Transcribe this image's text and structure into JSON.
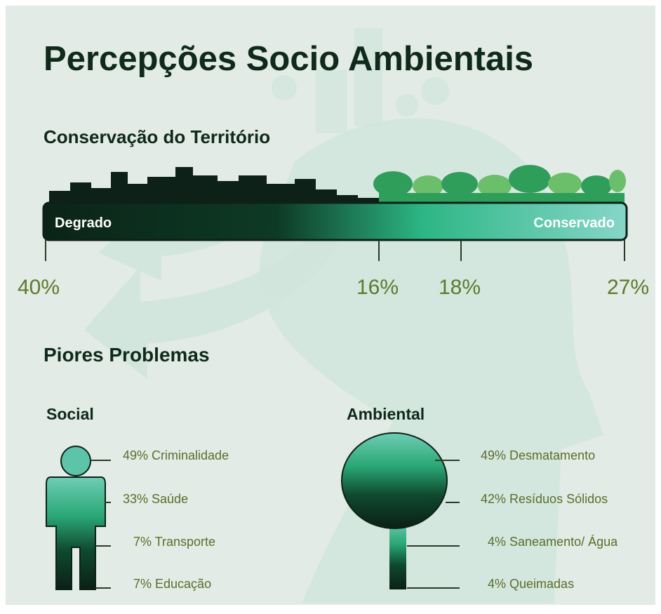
{
  "header": {
    "title": "Percepções Socio Ambientais"
  },
  "conservation": {
    "title": "Conservação do Território",
    "left_label": "Degrado",
    "right_label": "Conservado",
    "markers": [
      "40%",
      "16%",
      "18%",
      "27%"
    ]
  },
  "problems": {
    "title": "Piores Problemas",
    "social": {
      "title": "Social",
      "items": [
        "49% Criminalidade",
        "33% Saúde",
        "7% Transporte",
        "7% Educação"
      ]
    },
    "environmental": {
      "title": "Ambiental",
      "items": [
        "49% Desmatamento",
        "42% Resíduos Sólidos",
        "4% Saneamento/ Água",
        "4% Queimadas"
      ]
    }
  }
}
